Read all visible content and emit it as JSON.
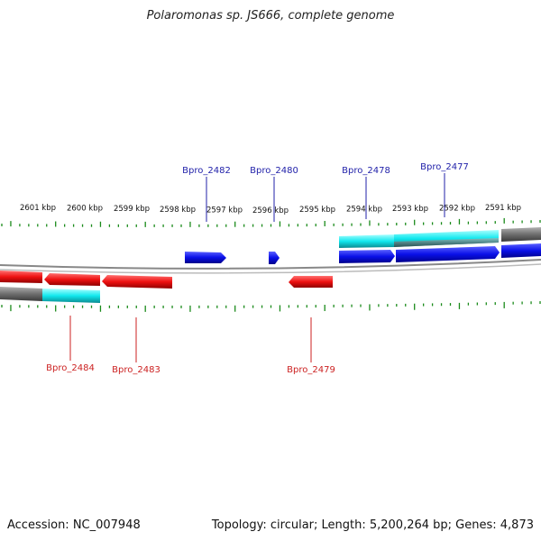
{
  "title": "Polaromonas sp. JS666, complete genome",
  "ruler_labels": [
    "2601 kbp",
    "2600 kbp",
    "2599 kbp",
    "2598 kbp",
    "2597 kbp",
    "2596 kbp",
    "2595 kbp",
    "2594 kbp",
    "2593 kbp",
    "2592 kbp",
    "2591 kbp"
  ],
  "forward_genes": [
    "Bpro_2482",
    "Bpro_2480",
    "Bpro_2478",
    "Bpro_2477"
  ],
  "reverse_genes": [
    "Bpro_2484",
    "Bpro_2483",
    "Bpro_2479"
  ],
  "footer": {
    "accession": "Accession: NC_007948",
    "summary": "Topology: circular; Length: 5,200,264 bp; Genes: 4,873"
  },
  "colors": {
    "forward": "#0a10e8",
    "reverse": "#ee1111",
    "cyan": "#11e8ee",
    "gray": "#6e6e6e",
    "ticks": "#1a8a1a",
    "forward_label": "#2222aa",
    "reverse_label": "#cc2222"
  }
}
